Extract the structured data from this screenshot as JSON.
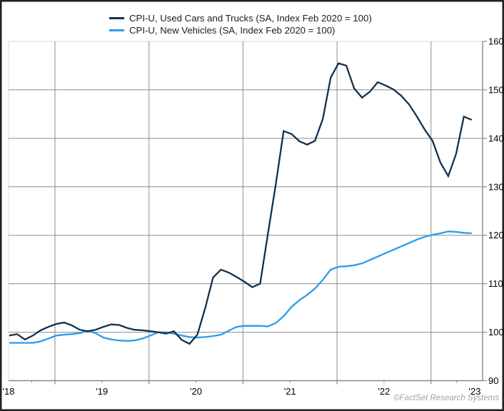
{
  "legend": {
    "items": [
      {
        "label": "CPI-U, Used Cars and Trucks (SA, Index Feb 2020 = 100)"
      },
      {
        "label": "CPI-U, New Vehicles (SA, Index Feb 2020 = 100)"
      }
    ]
  },
  "attribution": {
    "text": "©FactSet Research Systems"
  },
  "axes": {
    "y_ticks": [
      160,
      150,
      140,
      130,
      120,
      110,
      100,
      90
    ],
    "ylim": [
      90,
      160
    ],
    "x_tick_labels": [
      "'18",
      "'19",
      "'20",
      "'21",
      "'22",
      "'23"
    ]
  },
  "colors": {
    "used_cars_line": "#13304d",
    "new_vehicles_line": "#2b9ce8",
    "gridline": "#888d92",
    "plot_border_light": "#e9e9e9",
    "plot_border_dark": "#85898d",
    "outer_border": "#222222",
    "attribution_text": "#a2a2a2"
  },
  "chart_data": {
    "type": "line",
    "title": "",
    "xlabel": "",
    "ylabel": "",
    "ylim": [
      90,
      160
    ],
    "grid": true,
    "legend_position": "top",
    "x_frequency": "monthly",
    "x": [
      "2018-07",
      "2018-08",
      "2018-09",
      "2018-10",
      "2018-11",
      "2018-12",
      "2019-01",
      "2019-02",
      "2019-03",
      "2019-04",
      "2019-05",
      "2019-06",
      "2019-07",
      "2019-08",
      "2019-09",
      "2019-10",
      "2019-11",
      "2019-12",
      "2020-01",
      "2020-02",
      "2020-03",
      "2020-04",
      "2020-05",
      "2020-06",
      "2020-07",
      "2020-08",
      "2020-09",
      "2020-10",
      "2020-11",
      "2020-12",
      "2021-01",
      "2021-02",
      "2021-03",
      "2021-04",
      "2021-05",
      "2021-06",
      "2021-07",
      "2021-08",
      "2021-09",
      "2021-10",
      "2021-11",
      "2021-12",
      "2022-01",
      "2022-02",
      "2022-03",
      "2022-04",
      "2022-05",
      "2022-06",
      "2022-07",
      "2022-08",
      "2022-09",
      "2022-10",
      "2022-11",
      "2022-12",
      "2023-01",
      "2023-02",
      "2023-03",
      "2023-04",
      "2023-05",
      "2023-06"
    ],
    "series": [
      {
        "name": "CPI-U, Used Cars and Trucks (SA, Index Feb 2020 = 100)",
        "color": "#13304d",
        "values": [
          99.3,
          99.6,
          98.5,
          99.3,
          100.4,
          101.1,
          101.7,
          102.0,
          101.4,
          100.5,
          100.2,
          100.5,
          101.1,
          101.6,
          101.5,
          100.9,
          100.5,
          100.4,
          100.2,
          100.0,
          99.7,
          100.2,
          98.4,
          97.6,
          99.5,
          105.0,
          111.3,
          112.9,
          112.3,
          111.4,
          110.4,
          109.3,
          110.0,
          120.3,
          130.5,
          141.5,
          140.9,
          139.4,
          138.7,
          139.5,
          144.0,
          152.5,
          155.5,
          155.0,
          150.3,
          148.4,
          149.6,
          151.6,
          150.9,
          150.1,
          148.8,
          147.0,
          144.5,
          141.8,
          139.5,
          135.0,
          132.2,
          136.8,
          144.5,
          143.8
        ]
      },
      {
        "name": "CPI-U, New Vehicles (SA, Index Feb 2020 = 100)",
        "color": "#2b9ce8",
        "values": [
          97.8,
          97.8,
          97.8,
          97.8,
          98.1,
          98.7,
          99.3,
          99.5,
          99.6,
          99.8,
          100.3,
          99.8,
          98.9,
          98.5,
          98.3,
          98.2,
          98.3,
          98.7,
          99.3,
          100.0,
          100.0,
          99.7,
          99.3,
          99.0,
          98.9,
          99.0,
          99.2,
          99.5,
          100.3,
          101.1,
          101.3,
          101.3,
          101.3,
          101.2,
          101.9,
          103.3,
          105.2,
          106.6,
          107.7,
          109.0,
          110.8,
          112.9,
          113.5,
          113.6,
          113.8,
          114.2,
          114.9,
          115.6,
          116.3,
          117.0,
          117.7,
          118.4,
          119.1,
          119.7,
          120.1,
          120.4,
          120.8,
          120.7,
          120.5,
          120.4
        ]
      }
    ]
  }
}
